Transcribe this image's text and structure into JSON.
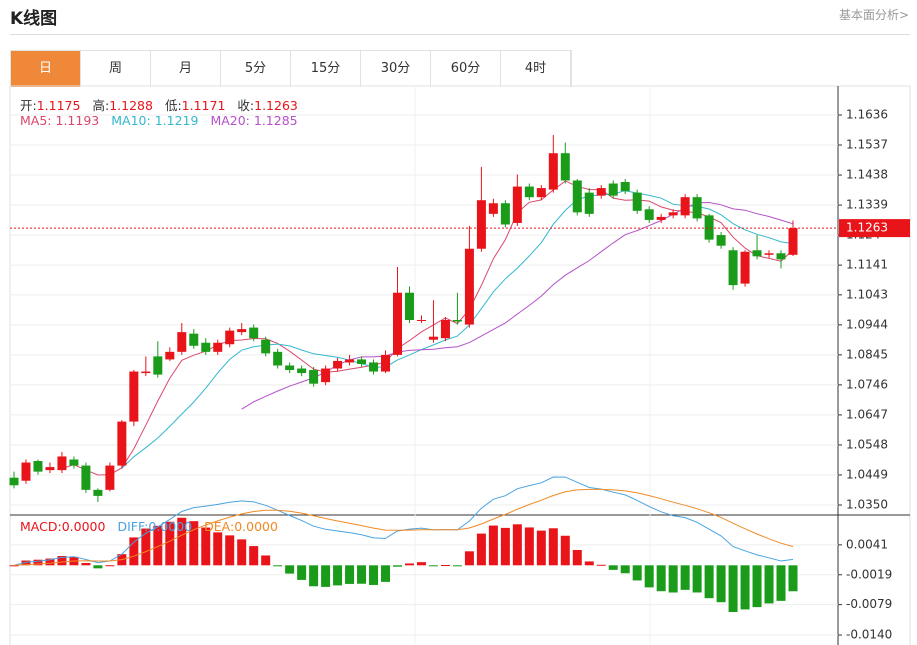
{
  "header": {
    "title": "K线图",
    "link": "基本面分析>"
  },
  "tabs": {
    "items": [
      "日",
      "周",
      "月",
      "5分",
      "15分",
      "30分",
      "60分",
      "4时"
    ],
    "active": 0
  },
  "chart_data": {
    "type": "candlestick",
    "quote": [
      {
        "label": "开:",
        "value": 1.1175
      },
      {
        "label": "高:",
        "value": 1.1288
      },
      {
        "label": "低:",
        "value": 1.1171
      },
      {
        "label": "收:",
        "value": 1.1263
      }
    ],
    "ma": [
      {
        "name": "MA5:",
        "period": 5,
        "value": 1.1193,
        "color": "#d9486a"
      },
      {
        "name": "MA10:",
        "period": 10,
        "value": 1.1219,
        "color": "#33b8d0"
      },
      {
        "name": "MA20:",
        "period": 20,
        "value": 1.1285,
        "color": "#b451c8"
      }
    ],
    "up_color": "#e8141a",
    "down_color": "#1a9b1a",
    "open": [
      1.044,
      1.043,
      1.0495,
      1.0465,
      1.0465,
      1.05,
      1.048,
      1.04,
      1.04,
      1.048,
      1.0625,
      1.0785,
      1.084,
      1.083,
      1.0855,
      1.0915,
      1.0885,
      1.0855,
      1.088,
      1.092,
      1.0935,
      1.0895,
      1.0855,
      1.081,
      1.08,
      1.0795,
      1.0755,
      1.08,
      1.082,
      1.083,
      1.082,
      1.079,
      1.0845,
      1.105,
      1.096,
      1.0895,
      1.09,
      1.096,
      1.0945,
      1.1195,
      1.131,
      1.1345,
      1.128,
      1.14,
      1.1365,
      1.139,
      1.151,
      1.142,
      1.138,
      1.137,
      1.141,
      1.1415,
      1.138,
      1.1325,
      1.129,
      1.1305,
      1.1305,
      1.1365,
      1.1305,
      1.124,
      1.119,
      1.108,
      1.119,
      1.1175,
      1.118,
      1.1175
    ],
    "high": [
      1.046,
      1.05,
      1.05,
      1.049,
      1.0525,
      1.051,
      1.049,
      1.0405,
      1.049,
      1.063,
      1.0795,
      1.084,
      1.089,
      1.087,
      1.095,
      1.093,
      1.09,
      1.0895,
      1.0935,
      1.095,
      1.0945,
      1.0905,
      1.0865,
      1.082,
      1.081,
      1.0805,
      1.081,
      1.0835,
      1.0845,
      1.084,
      1.083,
      1.086,
      1.1135,
      1.107,
      1.0975,
      1.1025,
      1.097,
      1.105,
      1.127,
      1.1465,
      1.136,
      1.1355,
      1.144,
      1.141,
      1.1405,
      1.157,
      1.1545,
      1.1425,
      1.1395,
      1.1405,
      1.142,
      1.1425,
      1.139,
      1.1335,
      1.131,
      1.1325,
      1.1375,
      1.1375,
      1.131,
      1.125,
      1.12,
      1.119,
      1.124,
      1.119,
      1.119,
      1.1288
    ],
    "low": [
      1.0405,
      1.042,
      1.045,
      1.0455,
      1.0455,
      1.047,
      1.039,
      1.036,
      1.0395,
      1.047,
      1.061,
      1.0775,
      1.077,
      1.0825,
      1.0845,
      1.0865,
      1.0845,
      1.0845,
      1.087,
      1.091,
      1.089,
      1.084,
      1.08,
      1.0785,
      1.0775,
      1.074,
      1.0745,
      1.079,
      1.081,
      1.0805,
      1.078,
      1.0785,
      1.084,
      1.095,
      1.095,
      1.0885,
      1.089,
      1.0945,
      1.0935,
      1.1185,
      1.13,
      1.1265,
      1.127,
      1.1355,
      1.1355,
      1.138,
      1.141,
      1.1305,
      1.13,
      1.136,
      1.136,
      1.1375,
      1.131,
      1.128,
      1.128,
      1.1295,
      1.1295,
      1.1285,
      1.1215,
      1.1195,
      1.106,
      1.107,
      1.116,
      1.1165,
      1.113,
      1.1171
    ],
    "close": [
      1.0415,
      1.049,
      1.046,
      1.0475,
      1.051,
      1.048,
      1.04,
      1.038,
      1.048,
      1.0625,
      1.079,
      1.079,
      1.078,
      1.0855,
      1.092,
      1.0875,
      1.0855,
      1.0885,
      1.0925,
      1.093,
      1.09,
      1.085,
      1.081,
      1.0795,
      1.0785,
      1.075,
      1.08,
      1.0825,
      1.083,
      1.0815,
      1.079,
      1.0845,
      1.105,
      1.096,
      1.096,
      1.0905,
      1.096,
      1.0955,
      1.1195,
      1.1355,
      1.1345,
      1.1275,
      1.14,
      1.1365,
      1.1395,
      1.151,
      1.142,
      1.1315,
      1.131,
      1.1395,
      1.137,
      1.1385,
      1.132,
      1.129,
      1.13,
      1.1315,
      1.1365,
      1.1295,
      1.1225,
      1.1205,
      1.1075,
      1.1185,
      1.117,
      1.118,
      1.116,
      1.1263
    ],
    "last_price": 1.1263,
    "ylim": [
      1.0317,
      1.1725
    ],
    "yticks": [
      1.1636,
      1.1537,
      1.1438,
      1.1339,
      1.124,
      1.1141,
      1.1043,
      1.0944,
      1.0845,
      1.0746,
      1.0647,
      1.0548,
      1.0449,
      {
        "value": 1.035,
        "label": "1.0350"
      }
    ],
    "grid": true,
    "macd": {
      "labels": [
        {
          "name": "MACD:",
          "value": "0.0000",
          "color": "#e8141a"
        },
        {
          "name": "DIFF:",
          "value": "0.0000",
          "color": "#4aa3e0"
        },
        {
          "name": "DEA:",
          "value": "0.0000",
          "color": "#f08a24"
        }
      ],
      "ylim": [
        -0.016,
        0.0101
      ],
      "yticks": [
        0.0041,
        -0.0019,
        -0.0079,
        {
          "value": -0.014,
          "label": "-0.0140"
        }
      ]
    }
  }
}
